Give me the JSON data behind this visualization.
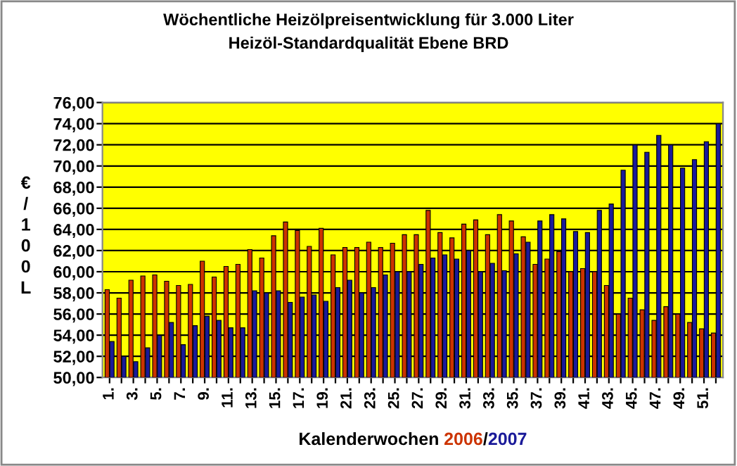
{
  "chart_data": {
    "type": "bar",
    "title": "Wöchentliche Heizölpreisentwicklung für 3.000 Liter",
    "subtitle": "Heizöl-Standardqualität Ebene BRD",
    "xlabel": "Kalenderwochen",
    "ylabel": "€/100L",
    "annotations": [
      "/"
    ],
    "categories": [
      "1.",
      null,
      "3.",
      null,
      "5.",
      null,
      "7.",
      null,
      "9.",
      null,
      "11.",
      null,
      "13.",
      null,
      "15.",
      null,
      "17.",
      null,
      "19.",
      null,
      "21.",
      null,
      "23.",
      null,
      "25.",
      null,
      "27.",
      null,
      "29.",
      null,
      "31.",
      null,
      "33.",
      null,
      "35.",
      null,
      "37.",
      null,
      "39.",
      null,
      "41.",
      null,
      "43.",
      null,
      "45.",
      null,
      "47.",
      null,
      "49.",
      null,
      "51.",
      null
    ],
    "series": [
      {
        "name": "2006",
        "color": "#cc3300",
        "values": [
          58.3,
          57.5,
          59.2,
          59.6,
          59.7,
          59.1,
          58.7,
          58.8,
          61.0,
          59.5,
          60.5,
          60.7,
          62.1,
          61.3,
          63.4,
          64.7,
          63.9,
          62.4,
          64.1,
          61.6,
          62.3,
          62.3,
          62.8,
          62.3,
          62.7,
          63.5,
          63.5,
          65.8,
          63.7,
          63.2,
          64.5,
          64.9,
          63.5,
          65.4,
          64.8,
          63.3,
          60.7,
          61.2,
          61.9,
          60.0,
          60.3,
          60.0,
          58.7,
          56.0,
          57.5,
          56.4,
          55.4,
          56.7,
          56.0,
          55.2,
          54.6,
          54.2
        ]
      },
      {
        "name": "2007",
        "color": "#1a1a99",
        "values": [
          53.4,
          52.0,
          51.5,
          52.8,
          54.0,
          55.2,
          53.1,
          54.9,
          55.8,
          55.4,
          54.7,
          54.7,
          58.2,
          58.0,
          58.2,
          57.1,
          57.6,
          57.8,
          57.2,
          58.5,
          59.2,
          58.0,
          58.5,
          59.7,
          60.0,
          60.0,
          60.7,
          61.3,
          61.6,
          61.2,
          62.0,
          60.0,
          60.8,
          60.1,
          61.7,
          62.8,
          64.8,
          65.4,
          65.0,
          63.8,
          63.7,
          65.8,
          66.4,
          69.6,
          72.0,
          71.3,
          72.9,
          72.0,
          69.8,
          70.6,
          72.3,
          74.0
        ]
      }
    ],
    "ylim": [
      50,
      76
    ],
    "yticks": [
      {
        "value": 50,
        "label": "50,00"
      },
      {
        "value": 52,
        "label": "52,00"
      },
      {
        "value": 54,
        "label": "54,00"
      },
      {
        "value": 56,
        "label": "56,00"
      },
      {
        "value": 58,
        "label": "58,00"
      },
      {
        "value": 60,
        "label": "60,00"
      },
      {
        "value": 62,
        "label": "62,00"
      },
      {
        "value": 64,
        "label": "64,00"
      },
      {
        "value": 66,
        "label": "66,00"
      },
      {
        "value": 68,
        "label": "68,00"
      },
      {
        "value": 70,
        "label": "70,00"
      },
      {
        "value": 72,
        "label": "72,00"
      },
      {
        "value": 74,
        "label": "74,00"
      },
      {
        "value": 76,
        "label": "76,00"
      }
    ],
    "grid": "y",
    "legend": "bottom"
  }
}
